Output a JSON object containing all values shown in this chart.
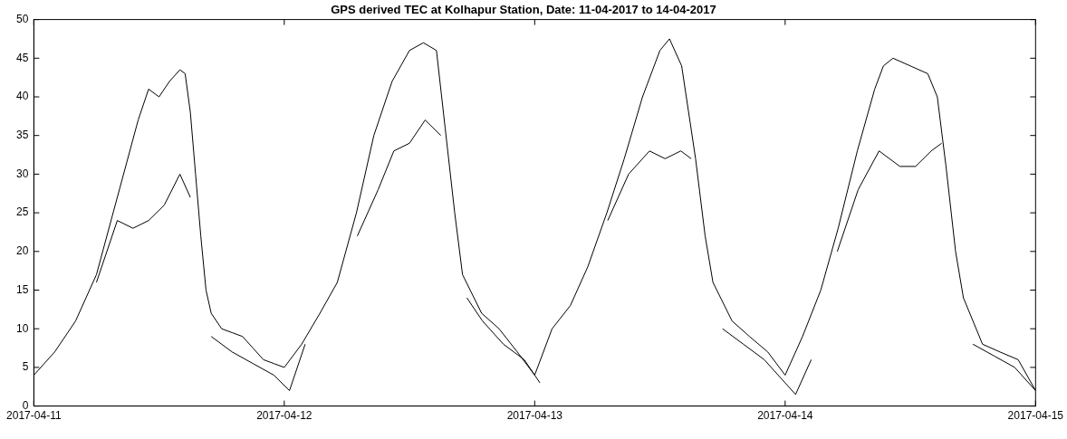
{
  "chart_data": {
    "type": "line",
    "title": "GPS derived TEC at Kolhapur Station, Date: 11-04-2017 to 14-04-2017",
    "xlim": [
      "2017-04-11",
      "2017-04-15"
    ],
    "xticks": [
      "2017-04-11",
      "2017-04-12",
      "2017-04-13",
      "2017-04-14",
      "2017-04-15"
    ],
    "ylim": [
      0,
      50
    ],
    "yticks": [
      0,
      5,
      10,
      15,
      20,
      25,
      30,
      35,
      40,
      45,
      50
    ],
    "grid": false,
    "legend": false,
    "marker": "none",
    "line_style": "solid",
    "series": [
      {
        "color": "#000000",
        "x": [
          "2017-04-11T00:00",
          "2017-04-11T02:00",
          "2017-04-11T04:00",
          "2017-04-11T06:00",
          "2017-04-11T08:00",
          "2017-04-11T10:00",
          "2017-04-11T11:00",
          "2017-04-11T12:00",
          "2017-04-11T13:00",
          "2017-04-11T14:00",
          "2017-04-11T14:30",
          "2017-04-11T15:00",
          "2017-04-11T15:30",
          "2017-04-11T16:00",
          "2017-04-11T16:30",
          "2017-04-11T17:00",
          "2017-04-11T18:00",
          "2017-04-11T19:00",
          "2017-04-11T20:00",
          "2017-04-11T21:00",
          "2017-04-11T22:00",
          "2017-04-11T23:00",
          "2017-04-12T00:00",
          "2017-04-12T01:40",
          "2017-04-12T03:25",
          "2017-04-12T05:05",
          "2017-04-12T06:55",
          "2017-04-12T08:35",
          "2017-04-12T10:20",
          "2017-04-12T12:00",
          "2017-04-12T13:20",
          "2017-04-12T14:35",
          "2017-04-12T15:25",
          "2017-04-12T16:20",
          "2017-04-12T17:05",
          "2017-04-12T18:55",
          "2017-04-12T20:35",
          "2017-04-12T22:20",
          "2017-04-13T00:00",
          "2017-04-13T01:40",
          "2017-04-13T03:25",
          "2017-04-13T05:05",
          "2017-04-13T06:55",
          "2017-04-13T08:35",
          "2017-04-13T10:20",
          "2017-04-13T12:00",
          "2017-04-13T12:55",
          "2017-04-13T14:05",
          "2017-04-13T15:25",
          "2017-04-13T16:20",
          "2017-04-13T17:05",
          "2017-04-13T18:55",
          "2017-04-13T20:35",
          "2017-04-13T22:20",
          "2017-04-14T00:00",
          "2017-04-14T01:40",
          "2017-04-14T03:25",
          "2017-04-14T05:05",
          "2017-04-14T06:55",
          "2017-04-14T08:35",
          "2017-04-14T09:25",
          "2017-04-14T10:20",
          "2017-04-14T12:00",
          "2017-04-14T13:40",
          "2017-04-14T14:35",
          "2017-04-14T15:25",
          "2017-04-14T16:20",
          "2017-04-14T17:05",
          "2017-04-14T18:55",
          "2017-04-14T20:35",
          "2017-04-14T22:20",
          "2017-04-15T00:00"
        ],
        "values": [
          4,
          7,
          11,
          17,
          27,
          37,
          41,
          40,
          42,
          43.5,
          43,
          38,
          30,
          22,
          15,
          12,
          10,
          9.5,
          9,
          7.5,
          6,
          5.5,
          5,
          8,
          12,
          16,
          25,
          35,
          42,
          46,
          47,
          46,
          36,
          25,
          17,
          12,
          10,
          7,
          4,
          10,
          13,
          18,
          25,
          32,
          40,
          46,
          47.5,
          44,
          32,
          22,
          16,
          11,
          9,
          7,
          4,
          9,
          15,
          23,
          33,
          41,
          44,
          45,
          44,
          43,
          40,
          31,
          20,
          14,
          8,
          7,
          6,
          2
        ]
      },
      {
        "color": "#000000",
        "x": [
          "2017-04-11T06:00",
          "2017-04-11T08:00",
          "2017-04-11T09:30",
          "2017-04-11T11:00",
          "2017-04-11T12:30",
          "2017-04-11T14:00",
          "2017-04-11T15:00",
          "2017-04-11T15:30",
          "2017-04-12T07:00",
          "2017-04-12T09:00",
          "2017-04-12T10:30",
          "2017-04-12T12:00",
          "2017-04-12T13:30",
          "2017-04-12T15:00",
          "2017-04-12T15:30",
          "2017-04-13T07:00",
          "2017-04-13T09:00",
          "2017-04-13T11:00",
          "2017-04-13T12:30",
          "2017-04-13T14:00",
          "2017-04-13T15:00",
          "2017-04-13T15:30",
          "2017-04-14T05:00",
          "2017-04-14T07:00",
          "2017-04-14T09:00",
          "2017-04-14T11:00",
          "2017-04-14T12:30",
          "2017-04-14T14:00",
          "2017-04-14T15:00"
        ],
        "values": [
          16,
          24,
          23,
          24,
          26,
          30,
          27,
          null,
          22,
          28,
          33,
          34,
          37,
          35,
          null,
          24,
          30,
          33,
          32,
          33,
          32,
          null,
          20,
          28,
          33,
          31,
          31,
          33,
          34
        ]
      },
      {
        "color": "#000000",
        "x": [
          "2017-04-11T17:00",
          "2017-04-11T19:00",
          "2017-04-11T21:00",
          "2017-04-11T23:00",
          "2017-04-12T00:30",
          "2017-04-12T02:00",
          "2017-04-12T02:30",
          "2017-04-12T17:30",
          "2017-04-12T19:00",
          "2017-04-12T21:00",
          "2017-04-12T23:00",
          "2017-04-13T00:30",
          "2017-04-13T01:30",
          "2017-04-13T18:00",
          "2017-04-13T20:00",
          "2017-04-13T22:00",
          "2017-04-14T00:00",
          "2017-04-14T01:00",
          "2017-04-14T02:30",
          "2017-04-14T03:00",
          "2017-04-14T18:00",
          "2017-04-14T20:00",
          "2017-04-14T22:00",
          "2017-04-15T00:00"
        ],
        "values": [
          9,
          7,
          5.5,
          4,
          2,
          8,
          null,
          14,
          11,
          8,
          6,
          3,
          null,
          10,
          8,
          6,
          3,
          1.5,
          6,
          null,
          8,
          6.5,
          5,
          2
        ]
      }
    ]
  }
}
